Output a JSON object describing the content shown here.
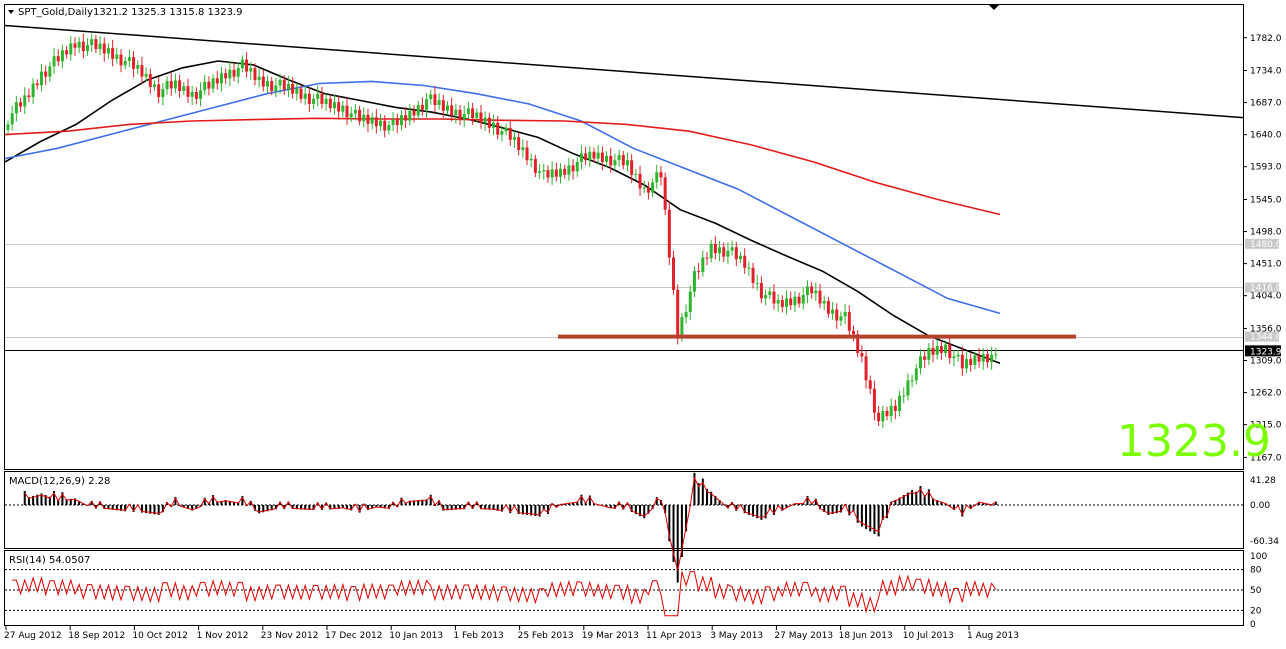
{
  "header": {
    "symbol_line": "SPT_Gold,Daily",
    "ohlc": "1321.2 1325.3 1315.8 1323.9"
  },
  "big_price": "1323.9",
  "price_axis": {
    "ticks": [
      "1782.0",
      "1734.0",
      "1687.0",
      "1640.0",
      "1593.0",
      "1545.0",
      "1498.0",
      "1451.0",
      "1404.0",
      "1356.0",
      "1309.0",
      "1262.0",
      "1215.0",
      "1167.0"
    ],
    "level_tags": [
      "1480.0",
      "1416.0",
      "1344.0"
    ],
    "current_tag": "1323.9"
  },
  "macd": {
    "label": "MACD(12,26,9) 2.28",
    "ticks": [
      "41.28",
      "0.00",
      "-60.34"
    ]
  },
  "rsi": {
    "label": "RSI(14) 54.0507",
    "ticks": [
      "100",
      "80",
      "50",
      "20",
      "0"
    ]
  },
  "colors": {
    "bull": "#2db52d",
    "bear": "#e0202a",
    "ma_short": "#000000",
    "ma_mid": "#3d6ee8",
    "ma_long": "#e41a1a",
    "support": "#b5412b",
    "big_price": "#7cfc00",
    "rsi": "#e00000"
  },
  "chart_data": {
    "type": "candlestick",
    "title": "SPT_Gold,Daily",
    "ohlc_last": {
      "open": 1321.2,
      "high": 1325.3,
      "low": 1315.8,
      "close": 1323.9
    },
    "x_labels": [
      "27 Aug 2012",
      "18 Sep 2012",
      "10 Oct 2012",
      "1 Nov 2012",
      "23 Nov 2012",
      "17 Dec 2012",
      "10 Jan 2013",
      "1 Feb 2013",
      "25 Feb 2013",
      "19 Mar 2013",
      "11 Apr 2013",
      "3 May 2013",
      "27 May 2013",
      "18 Jun 2013",
      "10 Jul 2013",
      "1 Aug 2013"
    ],
    "ylim": [
      1150,
      1830
    ],
    "close_series_weekly": [
      1665,
      1690,
      1730,
      1750,
      1775,
      1770,
      1762,
      1748,
      1730,
      1705,
      1712,
      1700,
      1710,
      1730,
      1740,
      1720,
      1712,
      1705,
      1695,
      1685,
      1680,
      1662,
      1660,
      1652,
      1670,
      1692,
      1680,
      1672,
      1665,
      1655,
      1635,
      1610,
      1578,
      1585,
      1600,
      1610,
      1605,
      1595,
      1560,
      1580,
      1350,
      1430,
      1475,
      1470,
      1450,
      1410,
      1390,
      1400,
      1410,
      1385,
      1370,
      1310,
      1220,
      1240,
      1290,
      1320,
      1330,
      1300,
      1315,
      1318
    ],
    "moving_averages": [
      {
        "period_label": "short",
        "values": [
          1600,
          1630,
          1655,
          1690,
          1720,
          1738,
          1748,
          1742,
          1720,
          1700,
          1690,
          1680,
          1673,
          1663,
          1650,
          1636,
          1612,
          1592,
          1566,
          1530,
          1510,
          1485,
          1462,
          1440,
          1410,
          1375,
          1345,
          1325,
          1305
        ]
      },
      {
        "period_label": "mid",
        "values": [
          1605,
          1620,
          1640,
          1660,
          1680,
          1700,
          1715,
          1718,
          1712,
          1700,
          1685,
          1660,
          1620,
          1590,
          1560,
          1520,
          1480,
          1440,
          1400,
          1378
        ]
      },
      {
        "period_label": "long",
        "values": [
          1640,
          1645,
          1655,
          1660,
          1662,
          1664,
          1663,
          1663,
          1661,
          1660,
          1655,
          1645,
          1625,
          1600,
          1570,
          1545,
          1523
        ]
      }
    ],
    "trendline": {
      "from": 1800,
      "to": 1665
    },
    "horizontal_levels": [
      1480.0,
      1416.0,
      1344.0,
      1323.9
    ],
    "support_line": 1344,
    "macd": {
      "ylim": [
        -70,
        45
      ],
      "level": 0,
      "last": 2.28
    },
    "rsi": {
      "ylim": [
        0,
        100
      ],
      "levels": [
        80,
        50,
        20
      ],
      "last": 54.0507
    }
  }
}
